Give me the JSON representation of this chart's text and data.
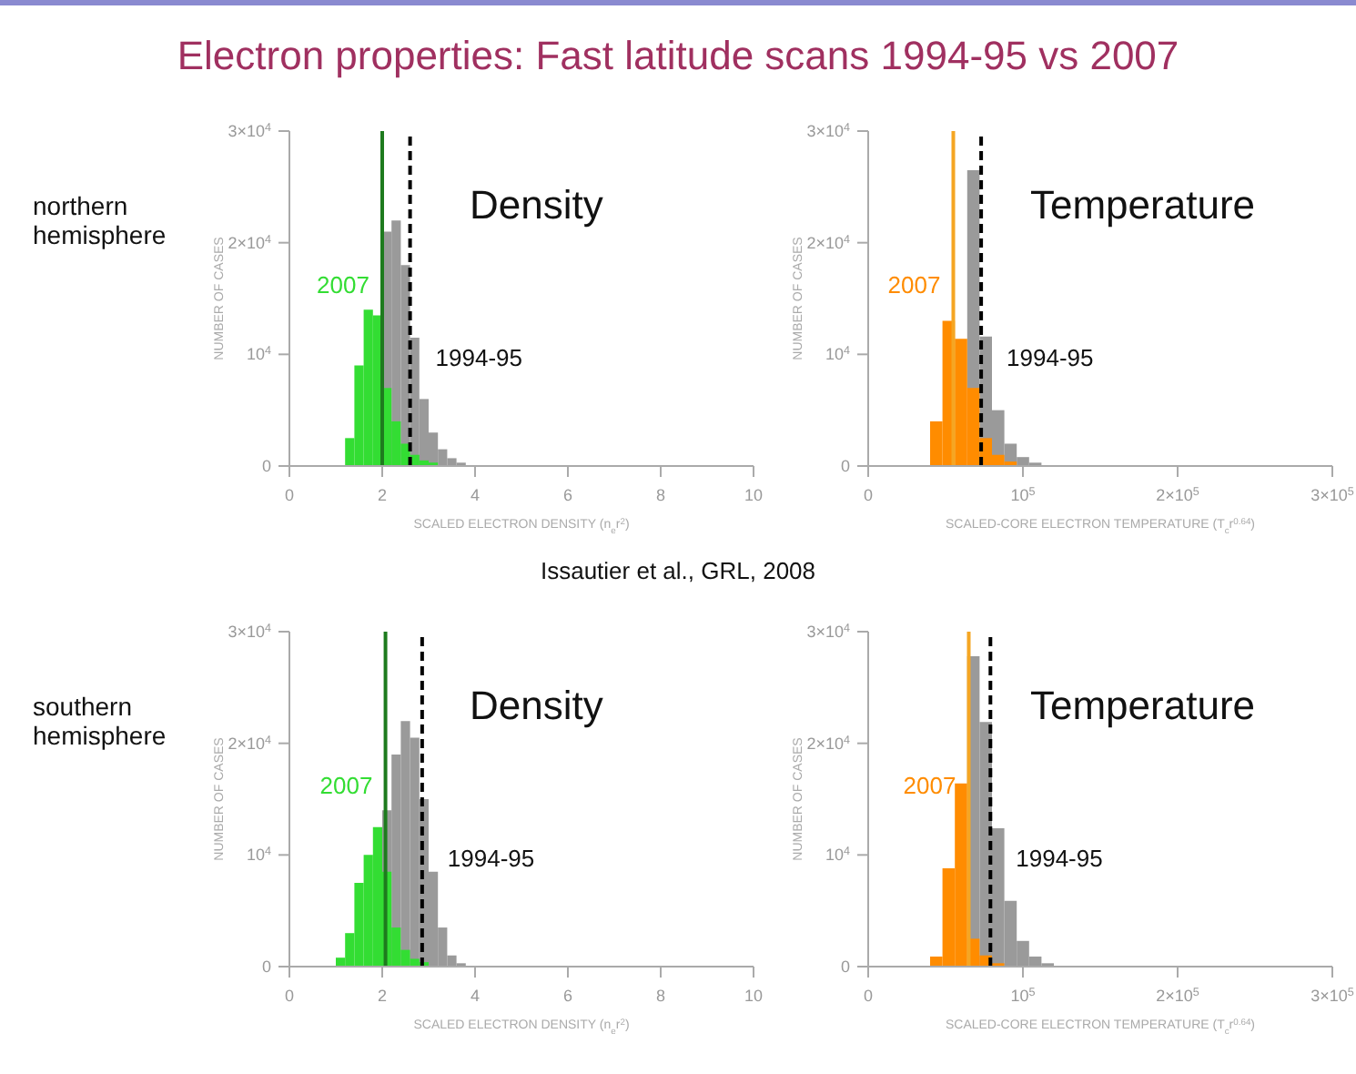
{
  "chart_data": [
    {
      "type": "histogram",
      "title": "Density",
      "subtitle": "northern hemisphere",
      "annotations": [
        "Electron properties: Fast latitude scans 1994-95 vs 2007"
      ],
      "xlabel": "SCALED ELECTRON DENSITY (n$_{e}$r$^{2}$)",
      "ylabel": "NUMBER OF CASES",
      "bins": [
        1.2,
        1.4,
        1.6,
        1.8,
        2.0,
        2.2,
        2.4,
        2.6,
        2.8,
        3.0,
        3.2,
        3.4,
        3.6,
        3.8
      ],
      "series": [
        {
          "name": "1994-95",
          "color": "#9a9a9a",
          "values": [
            null,
            null,
            null,
            null,
            21000,
            22000,
            18000,
            11500,
            6000,
            3000,
            1500,
            700,
            300
          ]
        },
        {
          "name": "2007",
          "color": "#33dd33",
          "values": [
            2500,
            9000,
            14000,
            13500,
            7000,
            4000,
            2000,
            1000,
            500,
            300,
            null,
            null,
            null
          ]
        }
      ],
      "ref_lines": [
        {
          "axis": "x",
          "value": 2,
          "color": "#1e7b1e",
          "line_style": "solid"
        },
        {
          "axis": "x",
          "value": 2.6,
          "color": "#000000",
          "line_style": "dashed"
        }
      ],
      "xlim": [
        0,
        10
      ],
      "xticks": [
        0,
        2,
        4,
        6,
        8,
        10
      ],
      "ylim": [
        0,
        30000
      ],
      "yticks": [
        {
          "value": 0,
          "label": "0"
        },
        {
          "value": 10000,
          "label": "10$^{4}$"
        },
        {
          "value": 20000,
          "label": "2×10$^{4}$"
        },
        {
          "value": 30000,
          "label": "3×10$^{4}$"
        }
      ]
    },
    {
      "type": "histogram",
      "title": "Temperature",
      "annotations": [
        "Issautier et al., GRL, 2008"
      ],
      "xlabel": "SCALED-CORE ELECTRON TEMPERATURE (T$_{c}$r$^{0.64}$)",
      "ylabel": "NUMBER OF CASES",
      "bins": [
        40000,
        48000,
        56000,
        64000,
        72000,
        80000,
        88000,
        96000,
        104000,
        112000
      ],
      "series": [
        {
          "name": "1994-95",
          "color": "#9a9a9a",
          "values": [
            null,
            null,
            null,
            26500,
            11600,
            5000,
            2000,
            800,
            300
          ]
        },
        {
          "name": "2007",
          "color": "#ff8c00",
          "values": [
            4000,
            13000,
            11400,
            7000,
            2500,
            1000,
            400,
            null,
            null
          ]
        }
      ],
      "ref_lines": [
        {
          "axis": "x",
          "value": 55000,
          "color": "#f5a623",
          "line_style": "solid"
        },
        {
          "axis": "x",
          "value": 73000,
          "color": "#000000",
          "line_style": "dashed"
        }
      ],
      "xlim": [
        0,
        300000
      ],
      "xticks": [
        0,
        {
          "value": 100000,
          "label": "10$^{5}$"
        },
        {
          "value": 200000,
          "label": "2×10$^{5}$"
        },
        {
          "value": 300000,
          "label": "3×10$^{5}$"
        }
      ],
      "ylim": [
        0,
        30000
      ],
      "yticks": [
        {
          "value": 0,
          "label": "0"
        },
        {
          "value": 10000,
          "label": "10$^{4}$"
        },
        {
          "value": 20000,
          "label": "2×10$^{4}$"
        },
        {
          "value": 30000,
          "label": "3×10$^{4}$"
        }
      ]
    },
    {
      "type": "histogram",
      "title": "Density",
      "subtitle": "southern hemisphere",
      "xlabel": "SCALED ELECTRON DENSITY (n$_{e}$r$^{2}$)",
      "ylabel": "NUMBER OF CASES",
      "bins": [
        1.0,
        1.2,
        1.4,
        1.6,
        1.8,
        2.0,
        2.2,
        2.4,
        2.6,
        2.8,
        3.0,
        3.2,
        3.4,
        3.6,
        3.8
      ],
      "series": [
        {
          "name": "1994-95",
          "color": "#9a9a9a",
          "values": [
            null,
            null,
            null,
            null,
            null,
            14000,
            19000,
            22000,
            20500,
            15000,
            8500,
            3500,
            1000,
            300
          ]
        },
        {
          "name": "2007",
          "color": "#33dd33",
          "values": [
            800,
            3000,
            7500,
            10000,
            12500,
            8500,
            3500,
            1500,
            700,
            400,
            null,
            null,
            null,
            null
          ]
        }
      ],
      "ref_lines": [
        {
          "axis": "x",
          "value": 2.07,
          "color": "#1e7b1e",
          "line_style": "solid"
        },
        {
          "axis": "x",
          "value": 2.86,
          "color": "#000000",
          "line_style": "dashed"
        }
      ],
      "xlim": [
        0,
        10
      ],
      "xticks": [
        0,
        2,
        4,
        6,
        8,
        10
      ],
      "ylim": [
        0,
        30000
      ],
      "yticks": [
        {
          "value": 0,
          "label": "0"
        },
        {
          "value": 10000,
          "label": "10$^{4}$"
        },
        {
          "value": 20000,
          "label": "2×10$^{4}$"
        },
        {
          "value": 30000,
          "label": "3×10$^{4}$"
        }
      ]
    },
    {
      "type": "histogram",
      "title": "Temperature",
      "xlabel": "SCALED-CORE ELECTRON TEMPERATURE (T$_{c}$r$^{0.64}$)",
      "ylabel": "NUMBER OF CASES",
      "bins": [
        40000,
        48000,
        56000,
        64000,
        72000,
        80000,
        88000,
        96000,
        104000,
        112000,
        120000
      ],
      "series": [
        {
          "name": "1994-95",
          "color": "#9a9a9a",
          "values": [
            null,
            null,
            null,
            27800,
            21900,
            12400,
            5900,
            2300,
            900,
            300
          ]
        },
        {
          "name": "2007",
          "color": "#ff8c00",
          "values": [
            900,
            8800,
            16400,
            2500,
            1000,
            300,
            null,
            null,
            null,
            null
          ]
        }
      ],
      "ref_lines": [
        {
          "axis": "x",
          "value": 65000,
          "color": "#f5a623",
          "line_style": "solid"
        },
        {
          "axis": "x",
          "value": 79000,
          "color": "#000000",
          "line_style": "dashed"
        }
      ],
      "xlim": [
        0,
        300000
      ],
      "xticks": [
        0,
        {
          "value": 100000,
          "label": "10$^{5}$"
        },
        {
          "value": 200000,
          "label": "2×10$^{5}$"
        },
        {
          "value": 300000,
          "label": "3×10$^{5}$"
        }
      ],
      "ylim": [
        0,
        30000
      ],
      "yticks": [
        {
          "value": 0,
          "label": "0"
        },
        {
          "value": 10000,
          "label": "10$^{4}$"
        },
        {
          "value": 20000,
          "label": "2×10$^{4}$"
        },
        {
          "value": 30000,
          "label": "3×10$^{4}$"
        }
      ]
    }
  ]
}
